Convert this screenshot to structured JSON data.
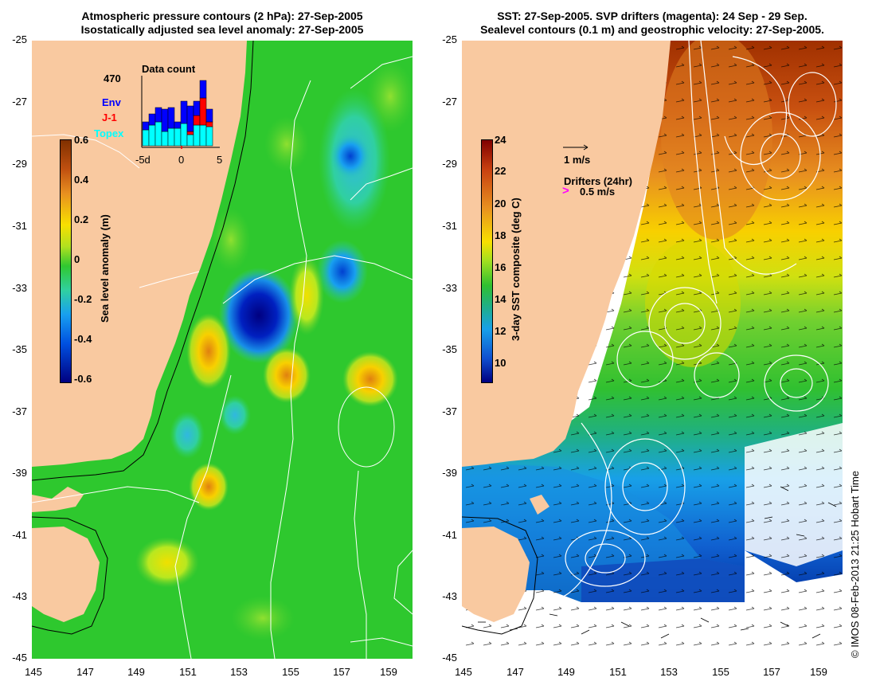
{
  "left_panel": {
    "title_line1": "Atmospheric pressure contours (2 hPa): 27-Sep-2005",
    "title_line2": "Isostatically adjusted sea level anomaly: 27-Sep-2005",
    "y_ticks": [
      "-25",
      "-27",
      "-29",
      "-31",
      "-33",
      "-35",
      "-37",
      "-39",
      "-41",
      "-43",
      "-45"
    ],
    "x_ticks": [
      "145",
      "147",
      "149",
      "151",
      "153",
      "155",
      "157",
      "159"
    ],
    "colorbar": {
      "label": "Sea level anomaly (m)",
      "ticks": [
        "0.6",
        "0.4",
        "0.2",
        "0",
        "-0.2",
        "-0.4",
        "-0.6"
      ],
      "range": [
        -0.6,
        0.6
      ]
    },
    "inset": {
      "title": "Data count",
      "count": "470",
      "legend": [
        {
          "name": "Env",
          "color": "#0000ff"
        },
        {
          "name": "J-1",
          "color": "#ff0000"
        },
        {
          "name": "Topex",
          "color": "#00ffff"
        }
      ],
      "x_ticks": [
        "-5d",
        "0",
        "5"
      ]
    }
  },
  "right_panel": {
    "title_line1": "SST: 27-Sep-2005. SVP drifters (magenta): 24 Sep - 29 Sep.",
    "title_line2": "Sealevel contours (0.1 m) and geostrophic velocity: 27-Sep-2005.",
    "y_ticks": [
      "-25",
      "-27",
      "-29",
      "-31",
      "-33",
      "-35",
      "-37",
      "-39",
      "-41",
      "-43",
      "-45"
    ],
    "x_ticks": [
      "145",
      "147",
      "149",
      "151",
      "153",
      "155",
      "157",
      "159"
    ],
    "colorbar": {
      "label": "3-day SST composite (deg C)",
      "ticks": [
        "24",
        "22",
        "20",
        "18",
        "16",
        "14",
        "12",
        "10"
      ],
      "range": [
        9,
        24
      ]
    },
    "velocity_scale": "1 m/s",
    "drifters_label": "Drifters (24hr)",
    "drifter_scale": "0.5 m/s",
    "drifter_color": "#ff00ff"
  },
  "copyright": "© IMOS 08-Feb-2013 21:25 Hobart Time",
  "colors": {
    "land": "#f9c9a0",
    "ocean_green": "#2fc92f"
  }
}
